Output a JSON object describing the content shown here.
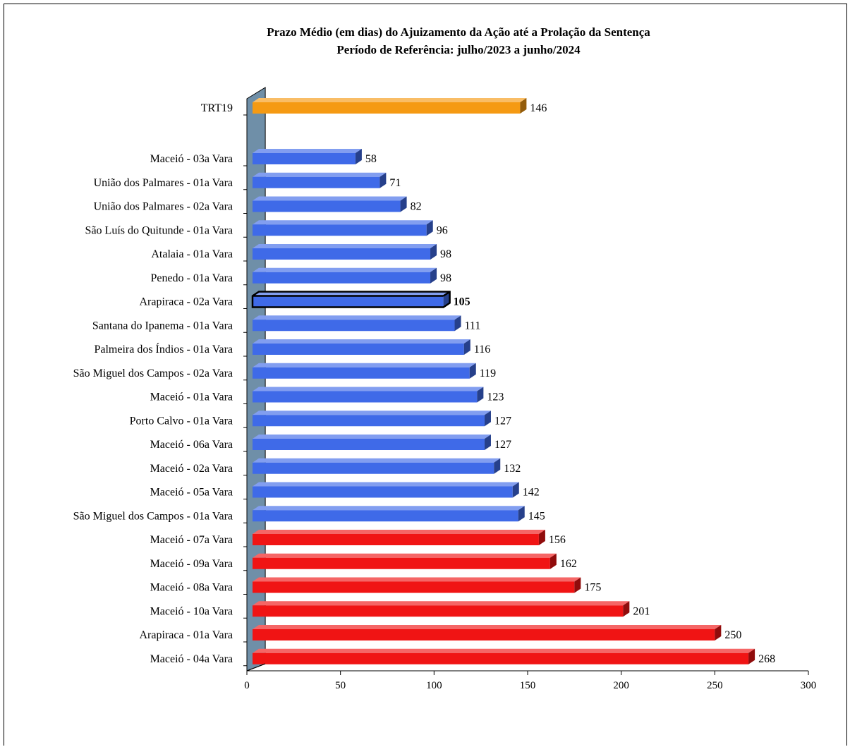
{
  "chart_data": {
    "type": "bar",
    "orientation": "horizontal",
    "title": "Prazo Médio (em dias) do Ajuizamento da Ação até a Prolação da Sentença",
    "subtitle": "Período de Referência: julho/2023 a junho/2024",
    "xlim": [
      0,
      300
    ],
    "xticks": [
      "0",
      "50",
      "100",
      "150",
      "200",
      "250",
      "300"
    ],
    "grid": false,
    "legend": "none",
    "colors": {
      "reference": "#F59A13",
      "below": "#3F6AE8",
      "above": "#F01414",
      "highlight": "#3F6AE8"
    },
    "categories": [
      "TRT19",
      "Maceió - 03a Vara",
      "União dos Palmares - 01a Vara",
      "União dos Palmares - 02a Vara",
      "São Luís do Quitunde - 01a Vara",
      "Atalaia - 01a Vara",
      "Penedo - 01a Vara",
      "Arapiraca - 02a Vara",
      "Santana do Ipanema - 01a Vara",
      "Palmeira dos Índios - 01a Vara",
      "São Miguel dos Campos - 02a Vara",
      "Maceió - 01a Vara",
      "Porto Calvo - 01a Vara",
      "Maceió - 06a Vara",
      "Maceió - 02a Vara",
      "Maceió - 05a Vara",
      "São Miguel dos Campos - 01a Vara",
      "Maceió - 07a Vara",
      "Maceió - 09a Vara",
      "Maceió - 08a Vara",
      "Maceió - 10a Vara",
      "Arapiraca - 01a Vara",
      "Maceió - 04a Vara"
    ],
    "values": [
      146,
      58,
      71,
      82,
      96,
      98,
      98,
      105,
      111,
      116,
      119,
      123,
      127,
      127,
      132,
      142,
      145,
      156,
      162,
      175,
      201,
      250,
      268
    ],
    "value_labels": [
      "146",
      "58",
      "71",
      "82",
      "96",
      "98",
      "98",
      "105",
      "111",
      "116",
      "119",
      "123",
      "127",
      "127",
      "132",
      "142",
      "145",
      "156",
      "162",
      "175",
      "201",
      "250",
      "268"
    ],
    "groups": [
      "reference",
      "below",
      "below",
      "below",
      "below",
      "below",
      "below",
      "highlight",
      "below",
      "below",
      "below",
      "below",
      "below",
      "below",
      "below",
      "below",
      "below",
      "above",
      "above",
      "above",
      "above",
      "above",
      "above"
    ]
  }
}
